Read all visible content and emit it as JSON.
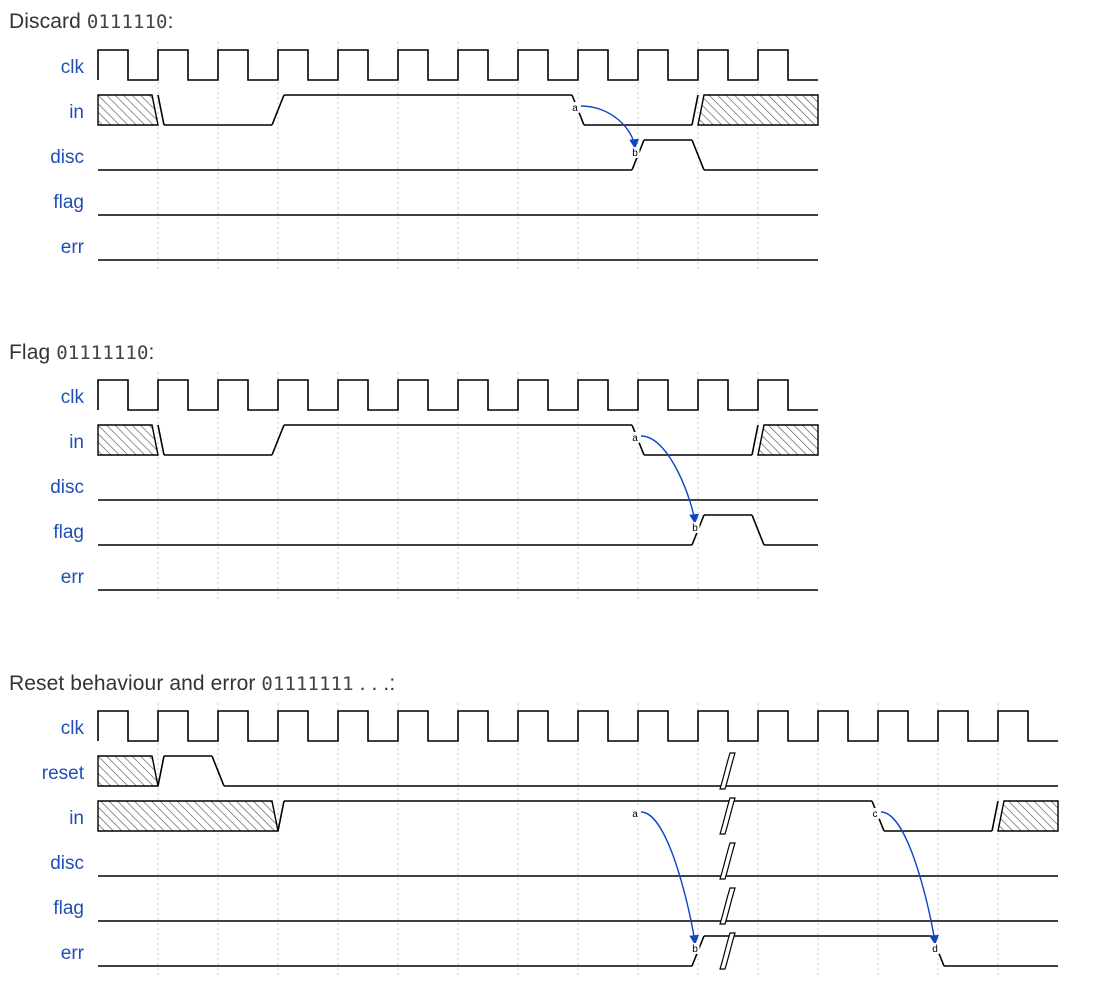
{
  "diagrams": [
    {
      "title_prefix": "Discard ",
      "title_code": "0111110",
      "title_suffix": ":",
      "signals": [
        {
          "name": "clk",
          "wave": "P..........."
        },
        {
          "name": "in",
          "wave": "x0.1....0.x."
        },
        {
          "name": "disc",
          "wave": "0........10."
        },
        {
          "name": "flag",
          "wave": "0..........."
        },
        {
          "name": "err",
          "wave": "0..........."
        }
      ],
      "nodes": [
        {
          "name": "a",
          "signal": "in",
          "cycle": 8
        },
        {
          "name": "b",
          "signal": "disc",
          "cycle": 9
        }
      ],
      "edges": [
        [
          "a",
          "b"
        ]
      ]
    },
    {
      "title_prefix": "Flag ",
      "title_code": "01111110",
      "title_suffix": ":",
      "signals": [
        {
          "name": "clk",
          "wave": "P..........."
        },
        {
          "name": "in",
          "wave": "x0.1.....0.x"
        },
        {
          "name": "disc",
          "wave": "0..........."
        },
        {
          "name": "flag",
          "wave": "0.........10"
        },
        {
          "name": "err",
          "wave": "0..........."
        }
      ],
      "nodes": [
        {
          "name": "a",
          "signal": "in",
          "cycle": 9
        },
        {
          "name": "b",
          "signal": "flag",
          "cycle": 10
        }
      ],
      "edges": [
        [
          "a",
          "b"
        ]
      ]
    },
    {
      "title_prefix": "Reset behaviour and error ",
      "title_code": "01111111",
      "title_suffix": " . . .:",
      "signals": [
        {
          "name": "clk",
          "wave": "P..............."
        },
        {
          "name": "reset",
          "wave": "x10............."
        },
        {
          "name": "in",
          "wave": "x..1.........0.x"
        },
        {
          "name": "disc",
          "wave": "0..............."
        },
        {
          "name": "flag",
          "wave": "0..............."
        },
        {
          "name": "err",
          "wave": "0.........1...0."
        }
      ],
      "gap_cycle": 10.5,
      "nodes": [
        {
          "name": "a",
          "signal": "in",
          "cycle": 9
        },
        {
          "name": "b",
          "signal": "err",
          "cycle": 10
        },
        {
          "name": "c",
          "signal": "in",
          "cycle": 13
        },
        {
          "name": "d",
          "signal": "err",
          "cycle": 14
        }
      ],
      "edges": [
        [
          "a",
          "b"
        ],
        [
          "c",
          "d"
        ]
      ]
    }
  ]
}
